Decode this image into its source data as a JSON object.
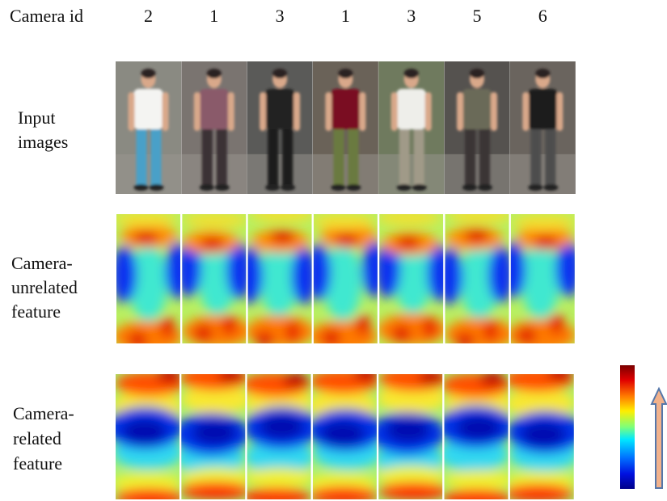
{
  "header": {
    "label": "Camera id",
    "camera_ids": [
      2,
      1,
      3,
      1,
      3,
      5,
      6
    ]
  },
  "rows": [
    {
      "label": [
        "Input",
        "images"
      ]
    },
    {
      "label": [
        "Camera-",
        "unrelated",
        "feature"
      ]
    },
    {
      "label": [
        "Camera-",
        "related",
        "feature"
      ]
    }
  ]
}
